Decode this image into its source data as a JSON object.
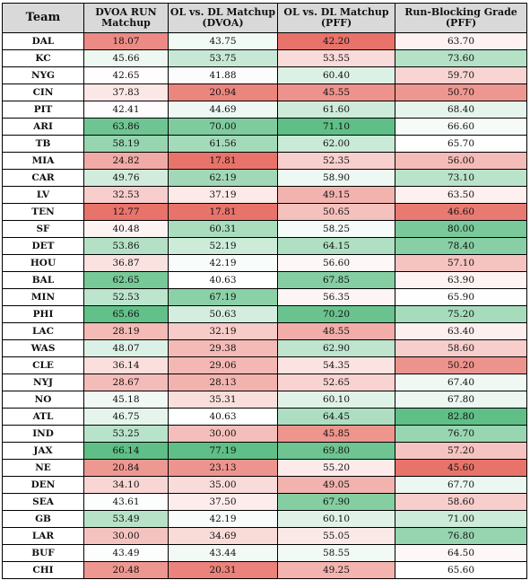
{
  "columns": [
    "Team",
    "DVOA RUN Matchup",
    "OL vs. DL Matchup (DVOA)",
    "OL vs. DL Matchup (PFF)",
    "Run-Blocking Grade (PFF)"
  ],
  "rows": [
    {
      "team": "DAL",
      "dvoa_run": "18.07",
      "ol_dl_dvoa": "43.75",
      "ol_dl_pff": "42.20",
      "rbg": "63.70"
    },
    {
      "team": "KC",
      "dvoa_run": "45.66",
      "ol_dl_dvoa": "53.75",
      "ol_dl_pff": "53.55",
      "rbg": "73.60"
    },
    {
      "team": "NYG",
      "dvoa_run": "42.65",
      "ol_dl_dvoa": "41.88",
      "ol_dl_pff": "60.40",
      "rbg": "59.70"
    },
    {
      "team": "CIN",
      "dvoa_run": "37.83",
      "ol_dl_dvoa": "20.94",
      "ol_dl_pff": "45.55",
      "rbg": "50.70"
    },
    {
      "team": "PIT",
      "dvoa_run": "42.41",
      "ol_dl_dvoa": "44.69",
      "ol_dl_pff": "61.60",
      "rbg": "68.40"
    },
    {
      "team": "ARI",
      "dvoa_run": "63.86",
      "ol_dl_dvoa": "70.00",
      "ol_dl_pff": "71.10",
      "rbg": "66.60"
    },
    {
      "team": "TB",
      "dvoa_run": "58.19",
      "ol_dl_dvoa": "61.56",
      "ol_dl_pff": "62.00",
      "rbg": "65.70"
    },
    {
      "team": "MIA",
      "dvoa_run": "24.82",
      "ol_dl_dvoa": "17.81",
      "ol_dl_pff": "52.35",
      "rbg": "56.00"
    },
    {
      "team": "CAR",
      "dvoa_run": "49.76",
      "ol_dl_dvoa": "62.19",
      "ol_dl_pff": "58.90",
      "rbg": "73.10"
    },
    {
      "team": "LV",
      "dvoa_run": "32.53",
      "ol_dl_dvoa": "37.19",
      "ol_dl_pff": "49.15",
      "rbg": "63.50"
    },
    {
      "team": "TEN",
      "dvoa_run": "12.77",
      "ol_dl_dvoa": "17.81",
      "ol_dl_pff": "50.65",
      "rbg": "46.60"
    },
    {
      "team": "SF",
      "dvoa_run": "40.48",
      "ol_dl_dvoa": "60.31",
      "ol_dl_pff": "58.25",
      "rbg": "80.00"
    },
    {
      "team": "DET",
      "dvoa_run": "53.86",
      "ol_dl_dvoa": "52.19",
      "ol_dl_pff": "64.15",
      "rbg": "78.40"
    },
    {
      "team": "HOU",
      "dvoa_run": "36.87",
      "ol_dl_dvoa": "42.19",
      "ol_dl_pff": "56.60",
      "rbg": "57.10"
    },
    {
      "team": "BAL",
      "dvoa_run": "62.65",
      "ol_dl_dvoa": "40.63",
      "ol_dl_pff": "67.85",
      "rbg": "63.90"
    },
    {
      "team": "MIN",
      "dvoa_run": "52.53",
      "ol_dl_dvoa": "67.19",
      "ol_dl_pff": "56.35",
      "rbg": "65.90"
    },
    {
      "team": "PHI",
      "dvoa_run": "65.66",
      "ol_dl_dvoa": "50.63",
      "ol_dl_pff": "70.20",
      "rbg": "75.20"
    },
    {
      "team": "LAC",
      "dvoa_run": "28.19",
      "ol_dl_dvoa": "32.19",
      "ol_dl_pff": "48.55",
      "rbg": "63.40"
    },
    {
      "team": "WAS",
      "dvoa_run": "48.07",
      "ol_dl_dvoa": "29.38",
      "ol_dl_pff": "62.90",
      "rbg": "58.60"
    },
    {
      "team": "CLE",
      "dvoa_run": "36.14",
      "ol_dl_dvoa": "29.06",
      "ol_dl_pff": "54.35",
      "rbg": "50.20"
    },
    {
      "team": "NYJ",
      "dvoa_run": "28.67",
      "ol_dl_dvoa": "28.13",
      "ol_dl_pff": "52.65",
      "rbg": "67.40"
    },
    {
      "team": "NO",
      "dvoa_run": "45.18",
      "ol_dl_dvoa": "35.31",
      "ol_dl_pff": "60.10",
      "rbg": "67.80"
    },
    {
      "team": "ATL",
      "dvoa_run": "46.75",
      "ol_dl_dvoa": "40.63",
      "ol_dl_pff": "64.45",
      "rbg": "82.80"
    },
    {
      "team": "IND",
      "dvoa_run": "53.25",
      "ol_dl_dvoa": "30.00",
      "ol_dl_pff": "45.85",
      "rbg": "76.70"
    },
    {
      "team": "JAX",
      "dvoa_run": "66.14",
      "ol_dl_dvoa": "77.19",
      "ol_dl_pff": "69.80",
      "rbg": "57.20"
    },
    {
      "team": "NE",
      "dvoa_run": "20.84",
      "ol_dl_dvoa": "23.13",
      "ol_dl_pff": "55.20",
      "rbg": "45.60"
    },
    {
      "team": "DEN",
      "dvoa_run": "34.10",
      "ol_dl_dvoa": "35.00",
      "ol_dl_pff": "49.05",
      "rbg": "67.70"
    },
    {
      "team": "SEA",
      "dvoa_run": "43.61",
      "ol_dl_dvoa": "37.50",
      "ol_dl_pff": "67.90",
      "rbg": "58.60"
    },
    {
      "team": "GB",
      "dvoa_run": "53.49",
      "ol_dl_dvoa": "42.19",
      "ol_dl_pff": "60.10",
      "rbg": "71.00"
    },
    {
      "team": "LAR",
      "dvoa_run": "30.00",
      "ol_dl_dvoa": "34.69",
      "ol_dl_pff": "55.05",
      "rbg": "76.80"
    },
    {
      "team": "BUF",
      "dvoa_run": "43.49",
      "ol_dl_dvoa": "43.44",
      "ol_dl_pff": "58.55",
      "rbg": "64.50"
    },
    {
      "team": "CHI",
      "dvoa_run": "20.48",
      "ol_dl_dvoa": "20.31",
      "ol_dl_pff": "49.25",
      "rbg": "65.60"
    }
  ],
  "colors": {
    "header_bg": "#d9d9d9",
    "low": "#e8736b",
    "mid": "#ffffff",
    "high": "#5fbf86",
    "border": "#000000"
  }
}
